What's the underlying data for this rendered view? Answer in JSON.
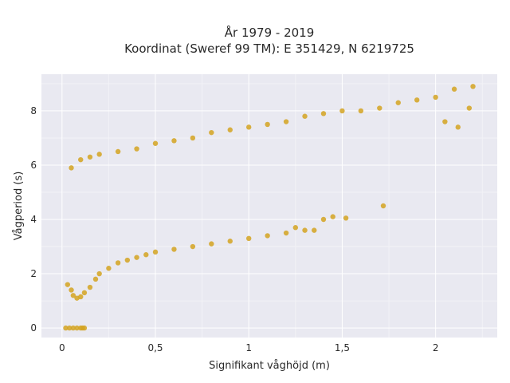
{
  "chart_data": {
    "type": "scatter",
    "title_lines": [
      "År 1979 - 2019",
      "Koordinat (Sweref 99 TM): E 351429, N 6219725"
    ],
    "xlabel": "Signifikant våghöjd (m)",
    "ylabel": "Vågperiod (s)",
    "xlim": [
      -0.11,
      2.33
    ],
    "ylim": [
      -0.35,
      9.35
    ],
    "x_ticks": [
      0,
      0.5,
      1,
      1.5,
      2
    ],
    "x_tick_labels": [
      "0",
      "0,5",
      "1",
      "1,5",
      "2"
    ],
    "y_ticks": [
      0,
      2,
      4,
      6,
      8
    ],
    "y_tick_labels": [
      "0",
      "2",
      "4",
      "6",
      "8"
    ],
    "grid": true,
    "point_color": "#D4A321",
    "plot_bg": "#E9E9F1",
    "series": [
      {
        "points": [
          [
            0.03,
            1.6
          ],
          [
            0.05,
            1.4
          ],
          [
            0.06,
            1.2
          ],
          [
            0.08,
            1.1
          ],
          [
            0.1,
            1.15
          ],
          [
            0.12,
            1.3
          ],
          [
            0.15,
            1.5
          ],
          [
            0.18,
            1.8
          ],
          [
            0.2,
            2.0
          ],
          [
            0.25,
            2.2
          ],
          [
            0.3,
            2.4
          ],
          [
            0.35,
            2.5
          ],
          [
            0.4,
            2.6
          ],
          [
            0.45,
            2.7
          ],
          [
            0.5,
            2.8
          ],
          [
            0.6,
            2.9
          ],
          [
            0.7,
            3.0
          ],
          [
            0.8,
            3.1
          ],
          [
            0.9,
            3.2
          ],
          [
            1.0,
            3.3
          ],
          [
            1.1,
            3.4
          ],
          [
            1.2,
            3.5
          ],
          [
            1.3,
            3.6
          ],
          [
            0.05,
            5.9
          ],
          [
            0.1,
            6.2
          ],
          [
            0.15,
            6.3
          ],
          [
            0.2,
            6.4
          ],
          [
            0.3,
            6.5
          ],
          [
            0.4,
            6.6
          ],
          [
            0.5,
            6.8
          ],
          [
            0.6,
            6.9
          ],
          [
            0.7,
            7.0
          ],
          [
            0.8,
            7.2
          ],
          [
            0.9,
            7.3
          ],
          [
            1.0,
            7.4
          ],
          [
            1.1,
            7.5
          ],
          [
            1.2,
            7.6
          ],
          [
            1.3,
            7.8
          ],
          [
            1.4,
            7.9
          ],
          [
            1.5,
            8.0
          ],
          [
            1.6,
            8.0
          ],
          [
            1.7,
            8.1
          ],
          [
            1.8,
            8.3
          ],
          [
            1.9,
            8.4
          ],
          [
            2.0,
            8.5
          ],
          [
            2.1,
            8.8
          ],
          [
            2.2,
            8.9
          ],
          [
            2.05,
            7.6
          ],
          [
            2.12,
            7.4
          ],
          [
            2.18,
            8.1
          ],
          [
            1.72,
            4.5
          ],
          [
            1.45,
            4.1
          ],
          [
            1.52,
            4.05
          ],
          [
            1.4,
            4.0
          ],
          [
            1.25,
            3.7
          ],
          [
            1.35,
            3.6
          ],
          [
            0.02,
            0.0
          ],
          [
            0.04,
            0.0
          ],
          [
            0.06,
            0.0
          ],
          [
            0.08,
            0.0
          ],
          [
            0.1,
            0.0
          ],
          [
            0.11,
            0.0
          ],
          [
            0.12,
            0.0
          ]
        ]
      }
    ]
  }
}
